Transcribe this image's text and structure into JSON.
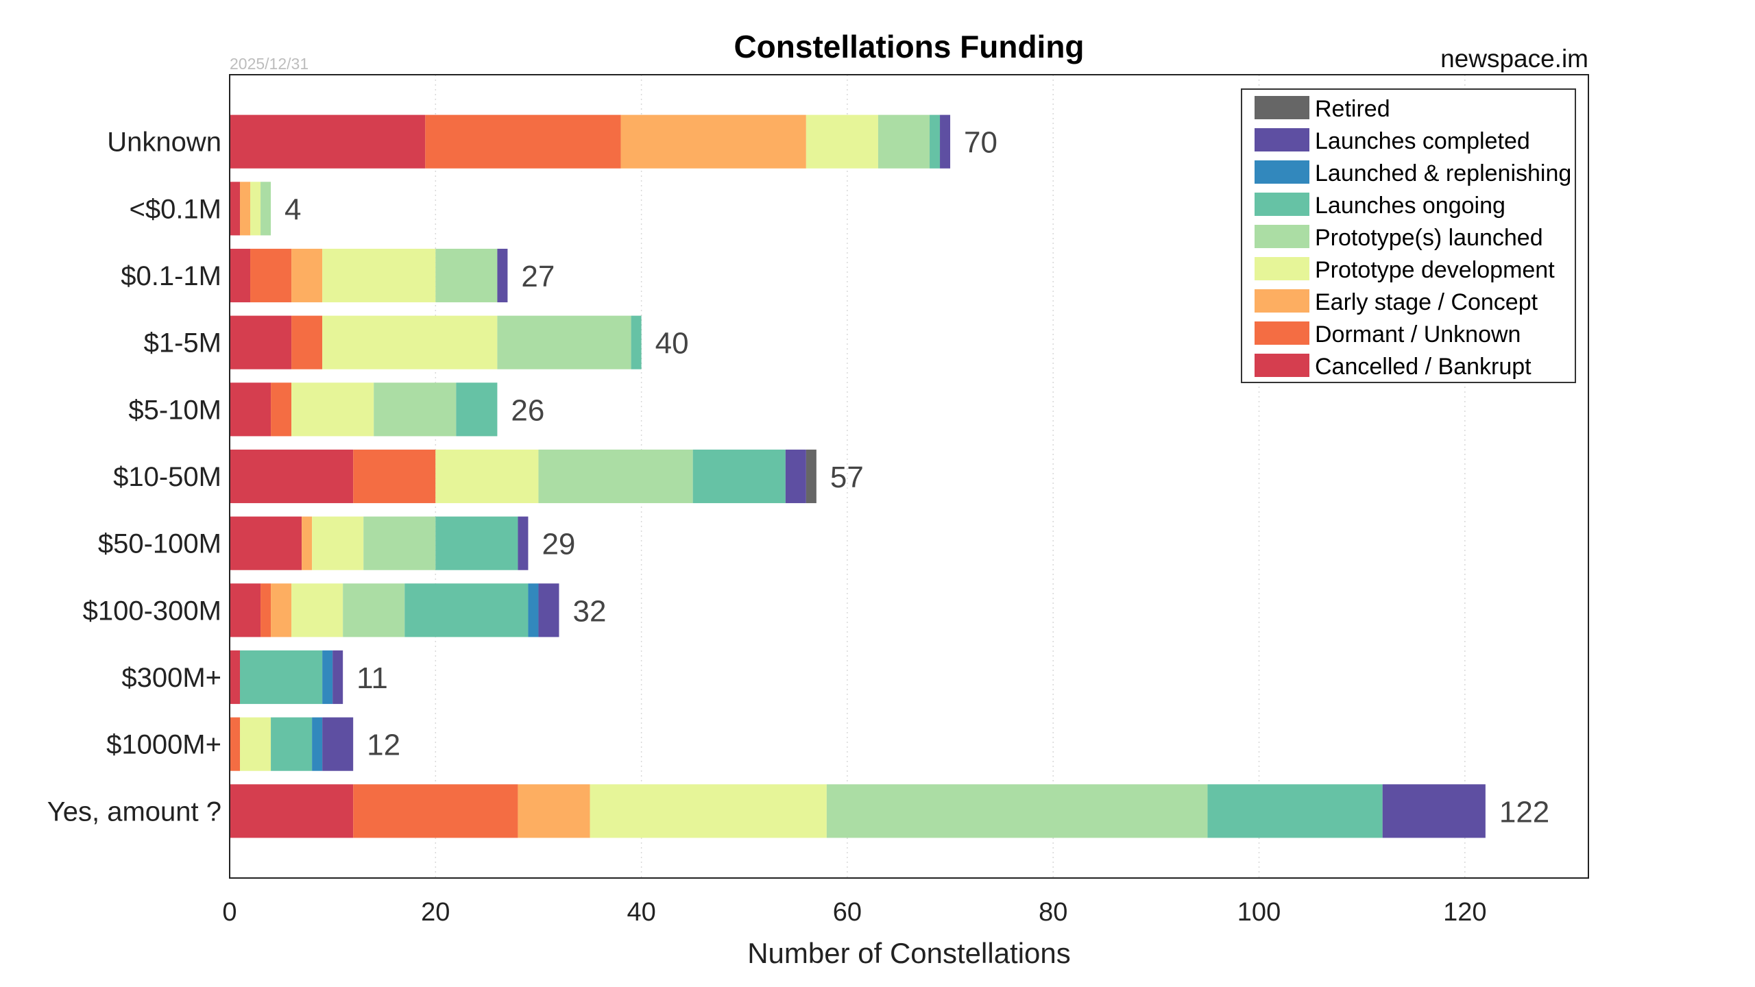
{
  "chart_data": {
    "type": "bar",
    "orientation": "horizontal",
    "stacked": true,
    "title": "Constellations Funding",
    "date_label": "2025/12/31",
    "watermark": "newspace.im",
    "xlabel": "Number of Constellations",
    "ylabel": "",
    "xlim": [
      0,
      132
    ],
    "xticks": [
      0,
      20,
      40,
      60,
      80,
      100,
      120
    ],
    "xtick_labels": [
      "0",
      "20",
      "40",
      "60",
      "80",
      "100",
      "120"
    ],
    "grid": "vertical dotted",
    "legend_position": "top-right",
    "categories": [
      "Unknown",
      "<$0.1M",
      "$0.1-1M",
      "$1-5M",
      "$5-10M",
      "$10-50M",
      "$50-100M",
      "$100-300M",
      "$300M+",
      "$1000M+",
      "Yes, amount ?"
    ],
    "totals": [
      70,
      4,
      27,
      40,
      26,
      57,
      29,
      32,
      11,
      12,
      122
    ],
    "series": [
      {
        "name": "Cancelled / Bankrupt",
        "color": "#d53e4f",
        "values": [
          19,
          1,
          2,
          6,
          4,
          12,
          7,
          3,
          1,
          0,
          12
        ]
      },
      {
        "name": "Dormant / Unknown",
        "color": "#f46d43",
        "values": [
          19,
          0,
          4,
          3,
          2,
          8,
          0,
          1,
          0,
          1,
          16
        ]
      },
      {
        "name": "Early stage / Concept",
        "color": "#fdae61",
        "values": [
          18,
          1,
          3,
          0,
          0,
          0,
          1,
          2,
          0,
          0,
          7
        ]
      },
      {
        "name": "Prototype development",
        "color": "#e6f598",
        "values": [
          7,
          1,
          11,
          17,
          8,
          10,
          5,
          5,
          0,
          3,
          23
        ]
      },
      {
        "name": "Prototype(s) launched",
        "color": "#abdda4",
        "values": [
          5,
          1,
          6,
          13,
          8,
          15,
          7,
          6,
          0,
          0,
          37
        ]
      },
      {
        "name": "Launches ongoing",
        "color": "#66c2a5",
        "values": [
          1,
          0,
          0,
          1,
          4,
          9,
          8,
          12,
          8,
          4,
          17
        ]
      },
      {
        "name": "Launched & replenishing",
        "color": "#3288bd",
        "values": [
          0,
          0,
          0,
          0,
          0,
          0,
          0,
          1,
          1,
          1,
          0
        ]
      },
      {
        "name": "Launches completed",
        "color": "#5e4fa2",
        "values": [
          1,
          0,
          1,
          0,
          0,
          2,
          1,
          2,
          1,
          3,
          10
        ]
      },
      {
        "name": "Retired",
        "color": "#666666",
        "values": [
          0,
          0,
          0,
          0,
          0,
          1,
          0,
          0,
          0,
          0,
          0
        ]
      }
    ],
    "legend_order": [
      "Retired",
      "Launches completed",
      "Launched & replenishing",
      "Launches ongoing",
      "Prototype(s) launched",
      "Prototype development",
      "Early stage / Concept",
      "Dormant / Unknown",
      "Cancelled / Bankrupt"
    ]
  }
}
